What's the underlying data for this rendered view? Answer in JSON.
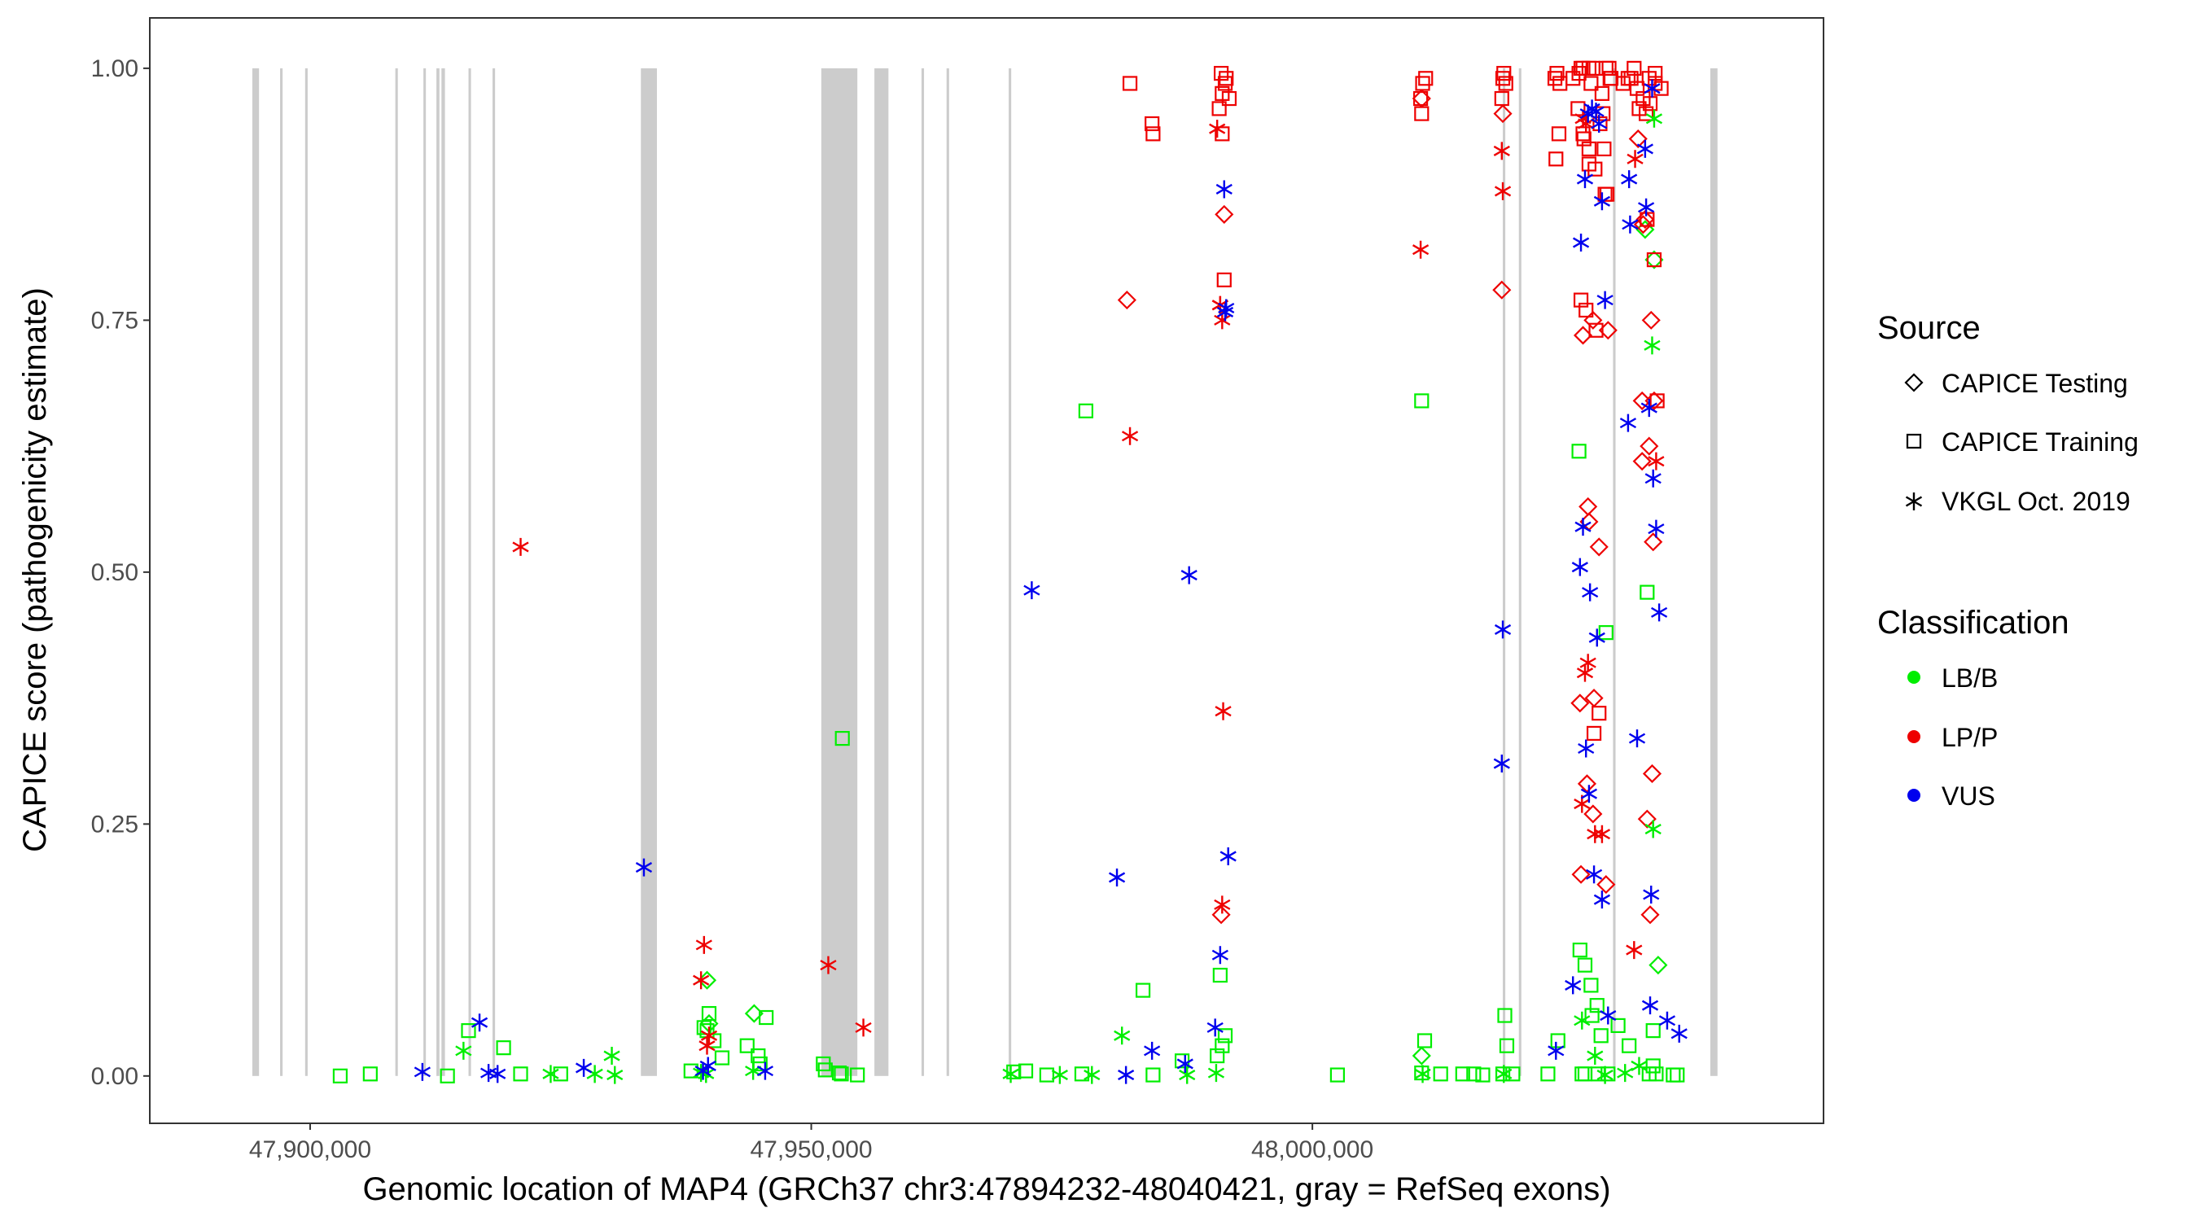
{
  "chart_data": {
    "type": "scatter",
    "title": "",
    "xlabel": "Genomic location of MAP4 (GRCh37 chr3:47894232-48040421, gray = RefSeq exons)",
    "ylabel": "CAPICE score (pathogenicity estimate)",
    "xlim": [
      47884000,
      48051000
    ],
    "ylim": [
      -0.047,
      1.05
    ],
    "x_ticks": [
      47900000,
      47950000,
      48000000
    ],
    "x_tick_labels": [
      "47,900,000",
      "47,950,000",
      "48,000,000"
    ],
    "y_ticks": [
      0,
      0.25,
      0.5,
      0.75,
      1
    ],
    "y_tick_labels": [
      "0.00",
      "0.25",
      "0.50",
      "0.75",
      "1.00"
    ],
    "grid": false,
    "exons": [
      [
        47894232,
        47894900
      ],
      [
        47897000,
        47897250
      ],
      [
        47899500,
        47899750
      ],
      [
        47908500,
        47908750
      ],
      [
        47911300,
        47911550
      ],
      [
        47912600,
        47912900
      ],
      [
        47913100,
        47913450
      ],
      [
        47915800,
        47916050
      ],
      [
        47918200,
        47918450
      ],
      [
        47933000,
        47934600
      ],
      [
        47951000,
        47954600
      ],
      [
        47956300,
        47957700
      ],
      [
        47961000,
        47961250
      ],
      [
        47963500,
        47963750
      ],
      [
        47969700,
        47969950
      ],
      [
        48019000,
        48019250
      ],
      [
        48020600,
        48020850
      ],
      [
        48030000,
        48030250
      ],
      [
        48039700,
        48040421
      ]
    ],
    "legend": {
      "source_title": "Source",
      "source_items": [
        {
          "label": "CAPICE Testing",
          "shape": "diamond"
        },
        {
          "label": "CAPICE Training",
          "shape": "square"
        },
        {
          "label": "VKGL Oct. 2019",
          "shape": "asterisk"
        }
      ],
      "class_title": "Classification",
      "class_items": [
        {
          "label": "LB/B",
          "color": "#00ee00"
        },
        {
          "label": "LP/P",
          "color": "#ee0000"
        },
        {
          "label": "VUS",
          "color": "#0000ee"
        }
      ]
    },
    "series": [
      {
        "name": "CAPICE Testing / LB/B",
        "shape": "diamond",
        "color": "#00ee00",
        "x": [
          47939600,
          47944300,
          47939800,
          48033200,
          48034100,
          48034500,
          48010900
        ],
        "y": [
          0.095,
          0.062,
          0.052,
          0.84,
          0.81,
          0.11,
          0.02
        ]
      },
      {
        "name": "CAPICE Testing / LP/P",
        "shape": "diamond",
        "color": "#ee0000",
        "x": [
          47981500,
          47991200,
          47990900,
          48010900,
          48019000,
          48018900,
          48027000,
          48028000,
          48027500,
          48027600,
          48028600,
          48028100,
          48026700,
          48027400,
          48028000,
          48029300,
          48032500,
          48033200,
          48033000,
          48033800,
          48034100,
          48033600,
          48032900,
          48034000,
          48033900,
          48033400,
          48026800,
          48032900,
          48033700,
          48029500
        ],
        "y": [
          0.77,
          0.855,
          0.16,
          0.97,
          0.955,
          0.78,
          0.735,
          0.75,
          0.565,
          0.55,
          0.525,
          0.375,
          0.37,
          0.29,
          0.26,
          0.19,
          0.93,
          0.85,
          0.845,
          0.75,
          0.67,
          0.625,
          0.61,
          0.53,
          0.3,
          0.255,
          0.2,
          0.67,
          0.16,
          0.74
        ]
      },
      {
        "name": "CAPICE Training / LB/B",
        "shape": "square",
        "color": "#00ee00",
        "x": [
          47903000,
          47906000,
          47913700,
          47915800,
          47919300,
          47921000,
          47925000,
          47939800,
          47939300,
          47939600,
          47940300,
          47941100,
          47943600,
          47944700,
          47945500,
          47944900,
          47951200,
          47953100,
          47954600,
          47970200,
          47971400,
          47973500,
          47977400,
          47983100,
          47984100,
          47987000,
          47990500,
          47991000,
          47990800,
          47991300,
          48002500,
          48010900,
          48011200,
          48016100,
          48017000,
          48019200,
          48019400,
          48024500,
          48026700,
          48027200,
          48027800,
          48028400,
          48029300,
          48030500,
          48031600,
          48033400,
          48034000,
          48036000,
          48036400,
          48019000,
          47951400,
          47953000,
          47952800,
          47977000,
          48010900,
          48012800,
          48015000,
          48020000,
          48023500,
          48026900,
          48027200,
          48028500,
          48029500,
          48033600,
          48034300,
          47938000,
          48034000,
          48026600,
          48027900,
          48028800
        ],
        "y": [
          0,
          0.002,
          0,
          0.045,
          0.028,
          0.002,
          0.002,
          0.062,
          0.048,
          0.045,
          0.035,
          0.018,
          0.03,
          0.02,
          0.058,
          0.012,
          0.012,
          0.335,
          0.001,
          0.004,
          0.005,
          0.001,
          0.66,
          0.085,
          0.001,
          0.015,
          0.02,
          0.03,
          0.1,
          0.04,
          0.001,
          0.67,
          0.035,
          0.002,
          0.001,
          0.06,
          0.03,
          0.035,
          0.125,
          0.11,
          0.09,
          0.07,
          0.44,
          0.05,
          0.03,
          0.48,
          0.045,
          0.001,
          0.001,
          0.002,
          0.006,
          0.002,
          0.003,
          0.002,
          0.003,
          0.002,
          0.002,
          0.002,
          0.002,
          0.002,
          0.002,
          0.002,
          0.002,
          0.002,
          0.002,
          0.005,
          0.01,
          0.62,
          0.06,
          0.04
        ]
      },
      {
        "name": "CAPICE Training / LP/P",
        "shape": "square",
        "color": "#ee0000",
        "x": [
          47981800,
          47984000,
          47984100,
          47990700,
          47991000,
          47991300,
          47990900,
          47991400,
          47991700,
          47991200,
          47991000,
          48010900,
          48011300,
          48011000,
          48010800,
          48019000,
          48019300,
          48019100,
          48018900,
          48024300,
          48024600,
          48024200,
          48024400,
          48024700,
          48026000,
          48026500,
          48027000,
          48027600,
          48028200,
          48028700,
          48029100,
          48029400,
          48029800,
          48026600,
          48027800,
          48028900,
          48026800,
          48027300,
          48028300,
          48029000,
          48029700,
          48031000,
          48031800,
          48032400,
          48033000,
          48033600,
          48034200,
          48034800,
          48031500,
          48032600,
          48033300,
          48034100,
          48034400,
          48027100,
          48027600,
          48028100,
          48028600,
          48029200,
          48033400,
          48033700,
          48034200,
          48026800,
          48027000,
          48027600,
          48028000,
          48029300,
          48029600,
          48032100
        ],
        "y": [
          0.985,
          0.945,
          0.935,
          0.96,
          0.975,
          0.985,
          0.995,
          0.99,
          0.97,
          0.79,
          0.935,
          0.955,
          0.99,
          0.985,
          0.97,
          0.99,
          0.985,
          0.995,
          0.97,
          0.91,
          0.935,
          0.99,
          0.995,
          0.985,
          0.99,
          0.96,
          0.935,
          0.92,
          0.9,
          0.945,
          0.92,
          0.875,
          0.99,
          0.995,
          0.985,
          0.975,
          0.77,
          0.76,
          0.74,
          0.955,
          0.99,
          0.985,
          0.99,
          0.98,
          0.97,
          0.99,
          0.995,
          0.98,
          0.99,
          0.96,
          0.955,
          0.81,
          0.67,
          0.93,
          0.905,
          0.34,
          0.36,
          0.875,
          0.85,
          0.965,
          0.985,
          1.0,
          1.0,
          1.0,
          1.0,
          1.0,
          1.0,
          1.0
        ]
      },
      {
        "name": "VKGL / LB/B",
        "shape": "asterisk",
        "color": "#00ee00",
        "x": [
          47915300,
          47924000,
          47928400,
          47930100,
          47930400,
          47939000,
          47939500,
          47944200,
          47969900,
          47974800,
          47978000,
          47981000,
          47990400,
          47987500,
          48033900,
          48034000,
          48026900,
          48028200,
          48029200,
          48031200,
          48032600,
          48034100,
          48011000,
          48019100
        ],
        "y": [
          0.025,
          0.002,
          0.002,
          0.02,
          0.001,
          0.003,
          0.002,
          0.005,
          0.002,
          0.001,
          0.001,
          0.04,
          0.003,
          0.001,
          0.725,
          0.245,
          0.055,
          0.02,
          0.001,
          0.003,
          0.01,
          0.95,
          0.002,
          0.002
        ]
      },
      {
        "name": "VKGL / LP/P",
        "shape": "asterisk",
        "color": "#ee0000",
        "x": [
          47921000,
          47939300,
          47939000,
          47939600,
          47939800,
          47951700,
          47955200,
          47981800,
          47990500,
          47990800,
          47991000,
          47991100,
          47991000,
          47990800,
          48010800,
          48018900,
          48019000,
          48026900,
          48027200,
          48027500,
          48028200,
          48028900,
          48032100,
          48032200,
          48034300,
          48027300,
          48027000
        ],
        "y": [
          0.525,
          0.13,
          0.095,
          0.03,
          0.04,
          0.11,
          0.048,
          0.635,
          0.94,
          0.765,
          0.75,
          0.362,
          0.17,
          0.765,
          0.82,
          0.918,
          0.878,
          0.27,
          0.4,
          0.41,
          0.24,
          0.24,
          0.125,
          0.91,
          0.61,
          0.945,
          0.95
        ]
      },
      {
        "name": "VKGL / VUS",
        "shape": "asterisk",
        "color": "#0000ee",
        "x": [
          47911200,
          47916900,
          47918700,
          47917800,
          47927300,
          47933300,
          47939200,
          47939700,
          47945400,
          47972000,
          47980500,
          47981400,
          47984000,
          47987300,
          47987700,
          47990300,
          47990800,
          47991200,
          47991400,
          47991600,
          47991300,
          48019000,
          48018900,
          48024300,
          48026000,
          48026800,
          48027200,
          48027500,
          48027900,
          48028300,
          48028600,
          48028900,
          48029200,
          48029500,
          48026700,
          48027700,
          48028400,
          48027300,
          48027000,
          48031600,
          48031500,
          48031700,
          48032400,
          48033300,
          48033600,
          48034000,
          48034300,
          48034600,
          48033200,
          48033700,
          48035400,
          48036600,
          48027600,
          48028100,
          48028900,
          48033800,
          48033900
        ],
        "y": [
          0.004,
          0.053,
          0.002,
          0.003,
          0.008,
          0.207,
          0.005,
          0.01,
          0.005,
          0.482,
          0.197,
          0.001,
          0.025,
          0.012,
          0.497,
          0.048,
          0.12,
          0.88,
          0.762,
          0.218,
          0.758,
          0.443,
          0.31,
          0.025,
          0.09,
          0.827,
          0.89,
          0.955,
          0.96,
          0.957,
          0.945,
          0.868,
          0.77,
          0.06,
          0.505,
          0.48,
          0.435,
          0.325,
          0.545,
          0.89,
          0.648,
          0.845,
          0.335,
          0.862,
          0.663,
          0.593,
          0.543,
          0.46,
          0.92,
          0.07,
          0.055,
          0.042,
          0.28,
          0.2,
          0.175,
          0.18,
          0.98
        ]
      }
    ]
  }
}
